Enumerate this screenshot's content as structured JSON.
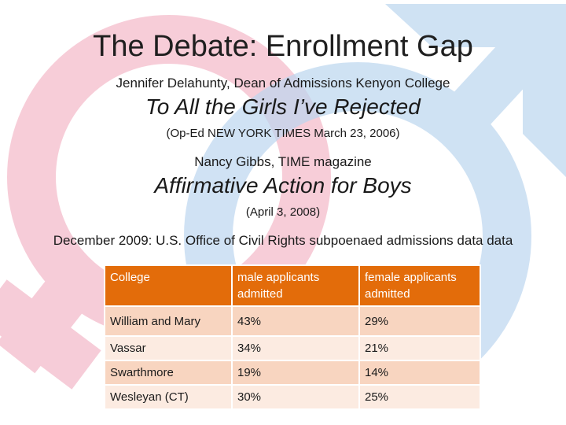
{
  "slide": {
    "title": "The Debate: Enrollment Gap",
    "articles": [
      {
        "author": "Jennifer Delahunty, Dean of Admissions Kenyon College",
        "headline": "To All the Girls I’ve Rejected",
        "citation": "(Op-Ed NEW YORK TIMES March 23, 2006)"
      },
      {
        "author": "Nancy Gibbs, TIME magazine",
        "headline": "Affirmative Action for Boys",
        "citation": "(April 3, 2008)"
      }
    ],
    "note": "December 2009: U.S. Office of Civil Rights subpoenaed admissions data data"
  },
  "table": {
    "headers": [
      "College",
      "male applicants admitted",
      "female applicants admitted"
    ],
    "rows": [
      [
        "William and Mary",
        "43%",
        "29%"
      ],
      [
        "Vassar",
        "34%",
        "21%"
      ],
      [
        "Swarthmore",
        "19%",
        "14%"
      ],
      [
        "Wesleyan (CT)",
        "30%",
        "25%"
      ]
    ],
    "header_color": "#e36c0a",
    "row_color_dark": "#f8d5c0",
    "row_color_light": "#fcebe1"
  },
  "background": {
    "female_symbol_color": "#f7c9d3",
    "male_symbol_color": "#c9def2"
  }
}
